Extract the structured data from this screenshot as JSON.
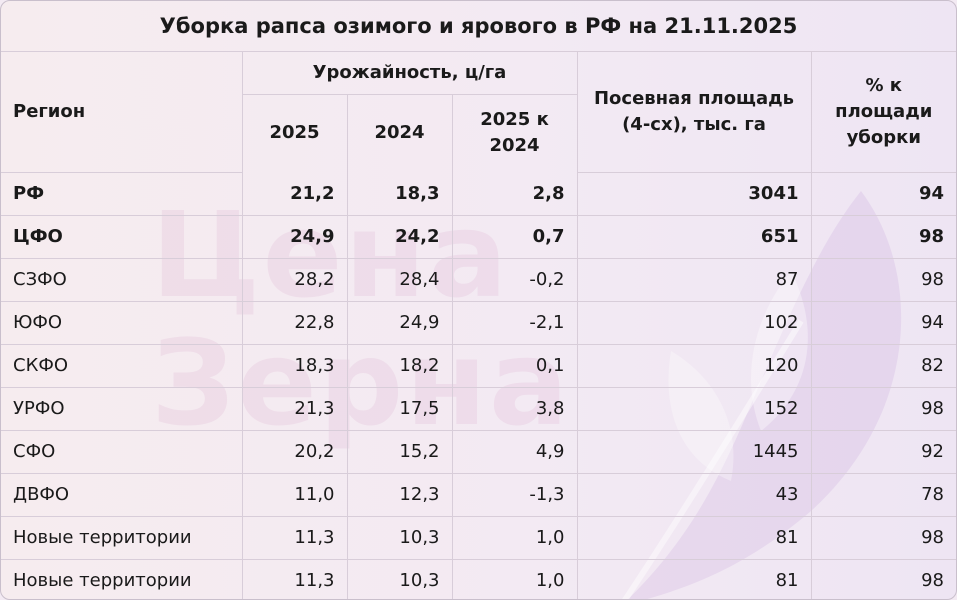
{
  "title": "Уборка рапса озимого и ярового в РФ на 21.11.2025",
  "headers": {
    "region": "Регион",
    "yield_group": "Урожайность, ц/га",
    "y2025": "2025",
    "y2024": "2024",
    "diff": "2025 к 2024",
    "area": "Посевная площадь (4-сх), тыс. га",
    "pct": "% к площади уборки"
  },
  "rows": [
    {
      "region": "РФ",
      "y2025": "21,2",
      "y2024": "18,3",
      "diff": "2,8",
      "area": "3041",
      "pct": "94",
      "bold": true
    },
    {
      "region": "ЦФО",
      "y2025": "24,9",
      "y2024": "24,2",
      "diff": "0,7",
      "area": "651",
      "pct": "98",
      "bold": true
    },
    {
      "region": "СЗФО",
      "y2025": "28,2",
      "y2024": "28,4",
      "diff": "-0,2",
      "area": "87",
      "pct": "98"
    },
    {
      "region": "ЮФО",
      "y2025": "22,8",
      "y2024": "24,9",
      "diff": "-2,1",
      "area": "102",
      "pct": "94"
    },
    {
      "region": "СКФО",
      "y2025": "18,3",
      "y2024": "18,2",
      "diff": "0,1",
      "area": "120",
      "pct": "82"
    },
    {
      "region": "УРФО",
      "y2025": "21,3",
      "y2024": "17,5",
      "diff": "3,8",
      "area": "152",
      "pct": "98"
    },
    {
      "region": "СФО",
      "y2025": "20,2",
      "y2024": "15,2",
      "diff": "4,9",
      "area": "1445",
      "pct": "92"
    },
    {
      "region": "ДВФО",
      "y2025": "11,0",
      "y2024": "12,3",
      "diff": "-1,3",
      "area": "43",
      "pct": "78"
    },
    {
      "region": "Новые территории",
      "y2025": "11,3",
      "y2024": "10,3",
      "diff": "1,0",
      "area": "81",
      "pct": "98"
    },
    {
      "region": "Новые территории",
      "y2025": "11,3",
      "y2024": "10,3",
      "diff": "1,0",
      "area": "81",
      "pct": "98"
    }
  ],
  "watermark": {
    "line1": "Цена",
    "line2": "Зерна",
    "icon": "wheat-leaf-logo"
  },
  "colors": {
    "accent": "#d696be",
    "border": "#d8cdd9",
    "background": "#f3eaf3"
  }
}
